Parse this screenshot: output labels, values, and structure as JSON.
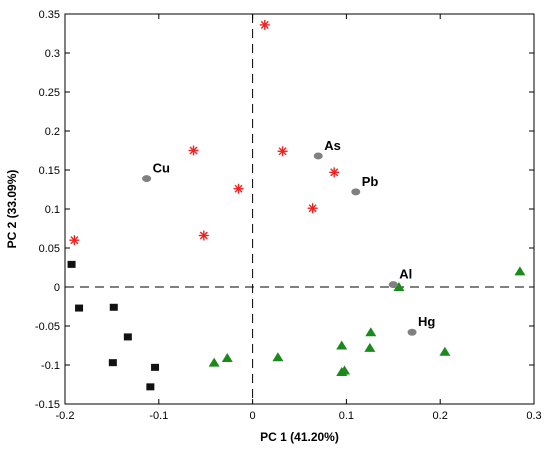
{
  "chart_data": {
    "type": "scatter",
    "title": "",
    "xlabel": "PC 1 (41.20%)",
    "ylabel": "PC 2 (33.09%)",
    "xlim": [
      -0.2,
      0.3
    ],
    "ylim": [
      -0.15,
      0.35
    ],
    "xticks": [
      -0.2,
      -0.1,
      0,
      0.1,
      0.2,
      0.3
    ],
    "xtick_labels": [
      "-0.2",
      "-0.1",
      "0",
      "0.1",
      "0.2",
      "0.3"
    ],
    "yticks": [
      -0.15,
      -0.1,
      -0.05,
      0,
      0.05,
      0.1,
      0.15,
      0.2,
      0.25,
      0.3,
      0.35
    ],
    "ytick_labels": [
      "-0.15",
      "-0.1",
      "-0.05",
      "0",
      "0.05",
      "0.1",
      "0.15",
      "0.2",
      "0.25",
      "0.3",
      "0.35"
    ],
    "reference_lines": {
      "x": 0,
      "y": 0,
      "style": "dashed"
    },
    "grid": false,
    "legend": "none",
    "series": [
      {
        "marker": "asterisk",
        "color": "#ee2222",
        "points": [
          {
            "x": -0.19,
            "y": 0.06
          },
          {
            "x": -0.052,
            "y": 0.066
          },
          {
            "x": -0.063,
            "y": 0.175
          },
          {
            "x": -0.015,
            "y": 0.126
          },
          {
            "x": 0.013,
            "y": 0.336
          },
          {
            "x": 0.032,
            "y": 0.174
          },
          {
            "x": 0.064,
            "y": 0.101
          },
          {
            "x": 0.087,
            "y": 0.147
          }
        ]
      },
      {
        "marker": "square",
        "color": "#111111",
        "points": [
          {
            "x": -0.193,
            "y": 0.029
          },
          {
            "x": -0.185,
            "y": -0.027
          },
          {
            "x": -0.148,
            "y": -0.026
          },
          {
            "x": -0.133,
            "y": -0.064
          },
          {
            "x": -0.149,
            "y": -0.097
          },
          {
            "x": -0.104,
            "y": -0.103
          },
          {
            "x": -0.109,
            "y": -0.128
          }
        ]
      },
      {
        "marker": "triangle",
        "color": "#1a8a1a",
        "points": [
          {
            "x": -0.041,
            "y": -0.097
          },
          {
            "x": -0.027,
            "y": -0.091
          },
          {
            "x": 0.027,
            "y": -0.09
          },
          {
            "x": 0.095,
            "y": -0.075
          },
          {
            "x": 0.095,
            "y": -0.109
          },
          {
            "x": 0.098,
            "y": -0.107
          },
          {
            "x": 0.125,
            "y": -0.078
          },
          {
            "x": 0.126,
            "y": -0.058
          },
          {
            "x": 0.156,
            "y": 0.0
          },
          {
            "x": 0.205,
            "y": -0.083
          },
          {
            "x": 0.285,
            "y": 0.02
          }
        ]
      },
      {
        "marker": "circle",
        "color": "#808080",
        "points": [
          {
            "x": -0.113,
            "y": 0.139,
            "label": "Cu"
          },
          {
            "x": 0.07,
            "y": 0.168,
            "label": "As"
          },
          {
            "x": 0.11,
            "y": 0.122,
            "label": "Pb"
          },
          {
            "x": 0.15,
            "y": 0.003,
            "label": "Al"
          },
          {
            "x": 0.17,
            "y": -0.058,
            "label": "Hg"
          }
        ]
      }
    ]
  }
}
